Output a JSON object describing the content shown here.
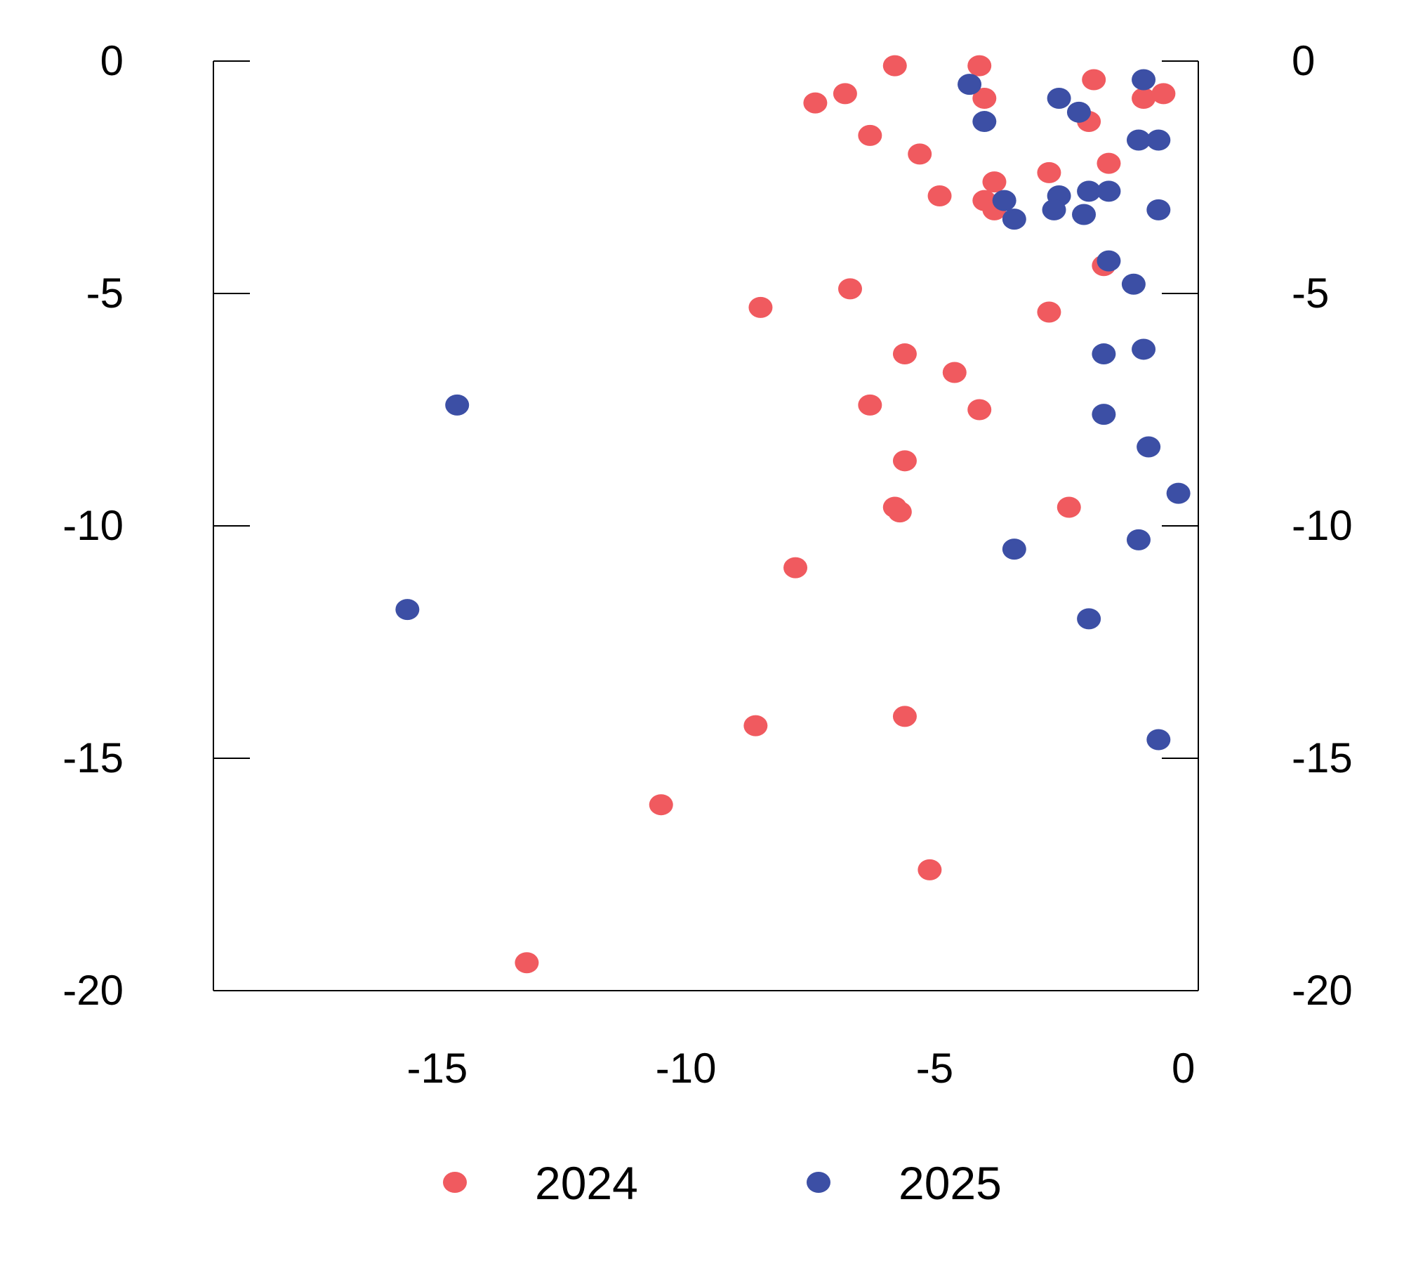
{
  "chart_data": {
    "type": "scatter",
    "title": "",
    "xlabel": "",
    "ylabel": "",
    "xlim": [
      -19.5,
      0.3
    ],
    "ylim": [
      -20,
      0
    ],
    "x_ticks": [
      -15,
      -10,
      -5,
      0
    ],
    "x_tick_labels": [
      "-15",
      "-10",
      "-5",
      "0"
    ],
    "y_ticks": [
      0,
      -5,
      -10,
      -15,
      -20
    ],
    "y_tick_labels": [
      "0",
      "-5",
      "-10",
      "-15",
      "-20"
    ],
    "grid": false,
    "legend_position": "bottom",
    "series": [
      {
        "name": "2024",
        "color": "#f05a5f",
        "points": [
          [
            -5.8,
            -0.1
          ],
          [
            -4.1,
            -0.1
          ],
          [
            -7.4,
            -0.9
          ],
          [
            -6.8,
            -0.7
          ],
          [
            -4.0,
            -0.8
          ],
          [
            -1.8,
            -0.4
          ],
          [
            -0.8,
            -0.8
          ],
          [
            -0.4,
            -0.7
          ],
          [
            -6.3,
            -1.6
          ],
          [
            -5.3,
            -2.0
          ],
          [
            -1.9,
            -1.3
          ],
          [
            -3.8,
            -2.6
          ],
          [
            -2.7,
            -2.4
          ],
          [
            -1.5,
            -2.2
          ],
          [
            -4.9,
            -2.9
          ],
          [
            -4.0,
            -3.0
          ],
          [
            -3.8,
            -3.2
          ],
          [
            -1.6,
            -4.4
          ],
          [
            -6.7,
            -4.9
          ],
          [
            -8.5,
            -5.3
          ],
          [
            -2.7,
            -5.4
          ],
          [
            -5.6,
            -6.3
          ],
          [
            -4.6,
            -6.7
          ],
          [
            -6.3,
            -7.4
          ],
          [
            -4.1,
            -7.5
          ],
          [
            -5.6,
            -8.6
          ],
          [
            -5.8,
            -9.6
          ],
          [
            -5.7,
            -9.7
          ],
          [
            -2.3,
            -9.6
          ],
          [
            -7.8,
            -10.9
          ],
          [
            -8.6,
            -14.3
          ],
          [
            -5.6,
            -14.1
          ],
          [
            -10.5,
            -16.0
          ],
          [
            -5.1,
            -17.4
          ],
          [
            -13.2,
            -19.4
          ]
        ]
      },
      {
        "name": "2025",
        "color": "#3c4fa5",
        "points": [
          [
            -4.3,
            -0.5
          ],
          [
            -0.8,
            -0.4
          ],
          [
            -2.5,
            -0.8
          ],
          [
            -2.1,
            -1.1
          ],
          [
            -4.0,
            -1.3
          ],
          [
            -0.9,
            -1.7
          ],
          [
            -0.5,
            -1.7
          ],
          [
            -3.6,
            -3.0
          ],
          [
            -2.5,
            -2.9
          ],
          [
            -1.9,
            -2.8
          ],
          [
            -1.5,
            -2.8
          ],
          [
            -2.6,
            -3.2
          ],
          [
            -2.0,
            -3.3
          ],
          [
            -3.4,
            -3.4
          ],
          [
            -0.5,
            -3.2
          ],
          [
            -1.5,
            -4.3
          ],
          [
            -1.0,
            -4.8
          ],
          [
            -0.8,
            -6.2
          ],
          [
            -1.6,
            -6.3
          ],
          [
            -14.6,
            -7.4
          ],
          [
            -1.6,
            -7.6
          ],
          [
            -0.7,
            -8.3
          ],
          [
            -0.1,
            -9.3
          ],
          [
            -3.4,
            -10.5
          ],
          [
            -0.9,
            -10.3
          ],
          [
            -15.6,
            -11.8
          ],
          [
            -1.9,
            -12.0
          ],
          [
            -0.5,
            -14.6
          ]
        ]
      }
    ]
  }
}
